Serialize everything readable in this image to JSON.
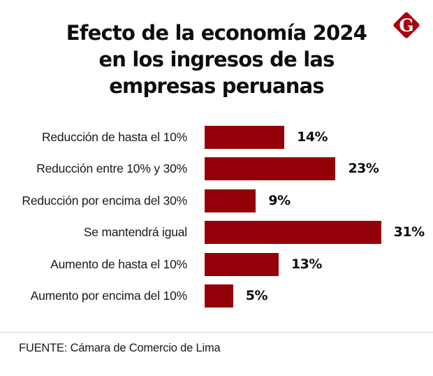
{
  "header": {
    "title_lines": [
      "Efecto de la economía 2024",
      "en los ingresos de las",
      "empresas peruanas"
    ],
    "logo": {
      "icon": "g-diamond-logo-icon",
      "letter": "G",
      "color": "#a8000f"
    }
  },
  "chart_data": {
    "type": "bar",
    "orientation": "horizontal",
    "title": "Efecto de la economía 2024 en los ingresos de las empresas peruanas",
    "xlabel": "",
    "ylabel": "",
    "categories": [
      "Reducción de hasta el 10%",
      "Reducción entre 10% y 30%",
      "Reducción por encima del 30%",
      "Se mantendrá igual",
      "Aumento de hasta el 10%",
      "Aumento por encima del 10%"
    ],
    "values": [
      14,
      23,
      9,
      31,
      13,
      5
    ],
    "value_labels": [
      "14%",
      "23%",
      "9%",
      "31%",
      "13%",
      "5%"
    ],
    "unit": "%",
    "xlim": [
      0,
      31
    ],
    "grid": false,
    "legend": null,
    "bar_color": "#940008"
  },
  "footer": {
    "source": "FUENTE: Cámara de Comercio de Lima"
  }
}
